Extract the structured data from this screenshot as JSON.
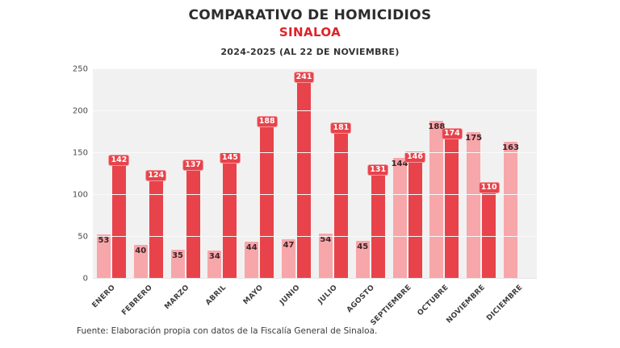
{
  "header": {
    "title": "COMPARATIVO DE HOMICIDIOS",
    "subtitle": "SINALOA",
    "period": "2024-2025 (AL 22 DE NOVIEMBRE)"
  },
  "footer": {
    "source": "Fuente: Elaboración propia con datos de la Fiscalía General de Sinaloa."
  },
  "colors": {
    "bar_2024": "#f7a6aa",
    "bar_2025": "#e8434b",
    "subtitle_red": "#de2329",
    "plot_background": "#f2f1f1",
    "label_2024_text": "#3f2326",
    "label_2025_text": "#ffffff"
  },
  "chart_data": {
    "type": "bar",
    "title": "COMPARATIVO DE HOMICIDIOS SINALOA 2024-2025 (AL 22 DE NOVIEMBRE)",
    "categories": [
      "ENERO",
      "FEBRERO",
      "MARZO",
      "ABRIL",
      "MAYO",
      "JUNIO",
      "JULIO",
      "AGOSTO",
      "SEPTIEMBRE",
      "OCTUBRE",
      "NOVIEMBRE",
      "DICIEMBRE"
    ],
    "series": [
      {
        "name": "2024",
        "color": "#f7a6aa",
        "values": [
          53,
          40,
          35,
          34,
          44,
          47,
          54,
          45,
          144,
          188,
          175,
          163
        ]
      },
      {
        "name": "2025",
        "color": "#e8434b",
        "values": [
          142,
          124,
          137,
          145,
          188,
          241,
          181,
          131,
          146,
          174,
          110,
          null
        ]
      }
    ],
    "xlabel": "",
    "ylabel": "",
    "ylim": [
      0,
      250
    ],
    "yticks": [
      0,
      50,
      100,
      150,
      200,
      250
    ],
    "grid": true,
    "legend_position": "none"
  }
}
